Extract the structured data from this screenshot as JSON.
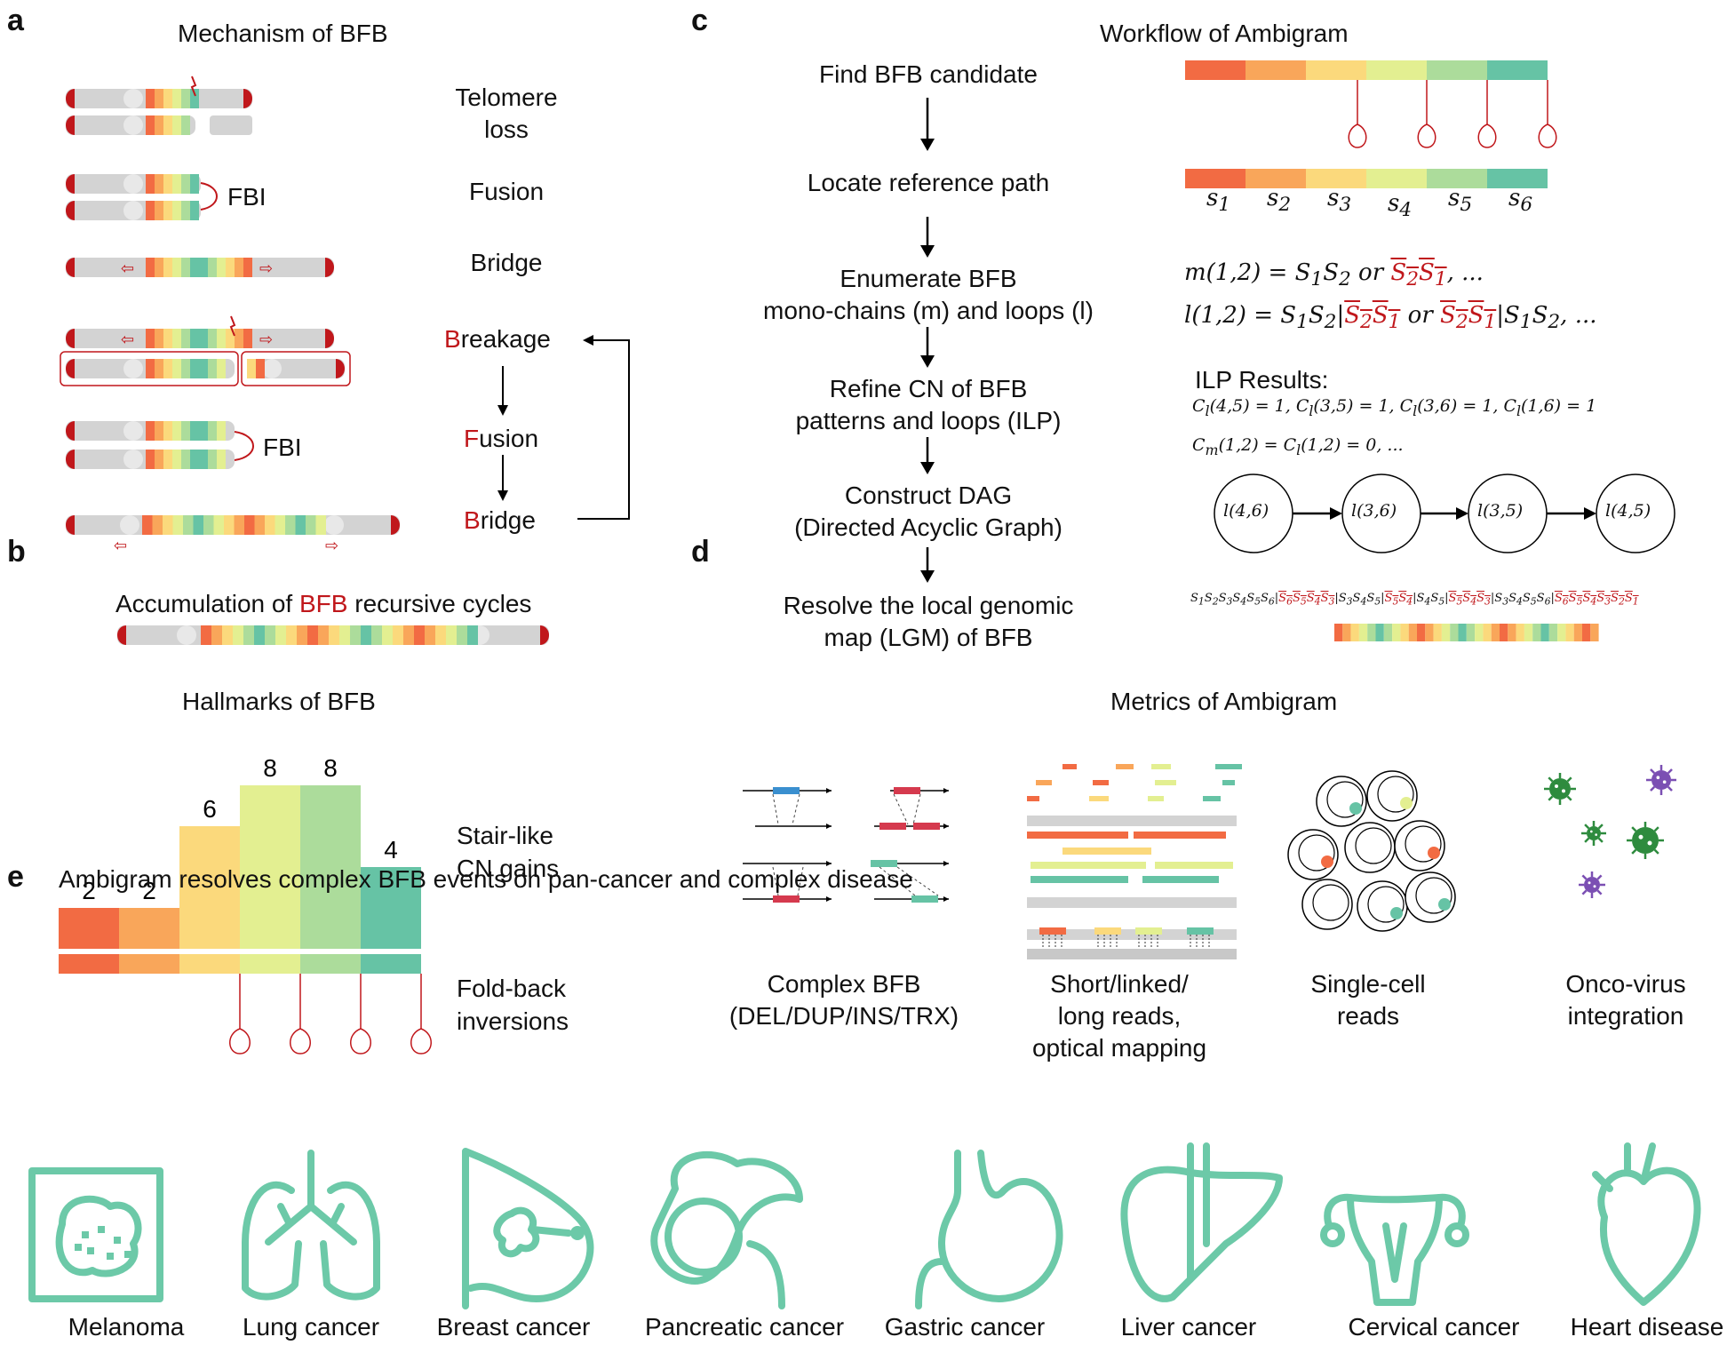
{
  "panels": {
    "a": "a",
    "b": "b",
    "c": "c",
    "d": "d",
    "e": "e"
  },
  "panel_a": {
    "title": "Mechanism of BFB",
    "steps": {
      "telomere_loss": [
        "Telomere",
        "loss"
      ],
      "fusion": "Fusion",
      "bridge": "Bridge"
    },
    "cycle": {
      "breakage": [
        "B",
        "reakage"
      ],
      "fusion": [
        "F",
        "usion"
      ],
      "bridge": [
        "B",
        "ridge"
      ]
    },
    "fbi_label_1": "FBI",
    "fbi_label_2": "FBI",
    "accumulation": [
      "Accumulation of ",
      "BFB",
      " recursive cycles"
    ]
  },
  "panel_b": {
    "title": "Hallmarks of BFB",
    "label_stair": [
      "Stair-like",
      "CN gains"
    ],
    "label_foldback": [
      "Fold-back",
      "inversions"
    ]
  },
  "chart_data": {
    "type": "bar",
    "title": "Hallmarks of BFB",
    "categories": [
      "",
      "",
      "",
      "",
      "",
      ""
    ],
    "values": [
      2,
      2,
      6,
      8,
      8,
      4
    ],
    "colors": [
      "#f26b43",
      "#f9a65a",
      "#fbd97c",
      "#e3ef91",
      "#acdc9b",
      "#66c3a5"
    ]
  },
  "panel_c": {
    "title": "Workflow of Ambigram",
    "steps": [
      [
        "Find BFB candidate"
      ],
      [
        "Locate reference path"
      ],
      [
        "Enumerate BFB",
        "mono-chains (m) and loops (l)"
      ],
      [
        "Refine CN of BFB",
        "patterns and loops (ILP)"
      ],
      [
        "Construct DAG",
        "(Directed Acyclic Graph)"
      ],
      [
        "Resolve the local genomic",
        "map (LGM) of BFB"
      ]
    ],
    "segments": [
      "s1",
      "s2",
      "s3",
      "s4",
      "s5",
      "s6"
    ],
    "segment_colors": [
      "#f26b43",
      "#f9a65a",
      "#fbd97c",
      "#e3ef91",
      "#acdc9b",
      "#66c3a5"
    ],
    "eq_m": "m(1,2) = S1S2 or S2S1, ...",
    "eq_l": "l(1,2) = S1S2|S2S1 or S2S1|S1S2, ...",
    "ilp_title": "ILP Results:",
    "ilp_line1": "Cl(4,5) = 1, Cl(3,5) = 1, Cl(3,6) = 1, Cl(1,6) = 1",
    "ilp_line2": "Cm(1,2) = Cl(1,2) = 0, ...",
    "dag_nodes": [
      "l(4,6)",
      "l(3,6)",
      "l(3,5)",
      "l(4,5)"
    ],
    "lgm": "S1S2S3S4S5S6|S6S5S4S3|S3S4S5|S5S4|S4S5|S5S4S3|S3S4S5S6|S6S5S4S3S2S1"
  },
  "panel_d": {
    "title": "Metrics of Ambigram",
    "items": [
      [
        "Complex BFB",
        "(DEL/DUP/INS/TRX)"
      ],
      [
        "Short/linked/",
        "long reads,",
        "optical mapping"
      ],
      [
        "Single-cell",
        "reads"
      ],
      [
        "Onco-virus",
        "integration"
      ]
    ]
  },
  "panel_e": {
    "title": "Ambigram resolves complex BFB events on pan-cancer and complex disease",
    "diseases": [
      "Melanoma",
      "Lung cancer",
      "Breast cancer",
      "Pancreatic cancer",
      "Gastric cancer",
      "Liver cancer",
      "Cervical cancer",
      "Heart disease"
    ]
  },
  "colors": {
    "accent_red": "#c0171b",
    "icon_teal": "#6cc9a8",
    "chrom_gray": "#d3d3d3"
  }
}
